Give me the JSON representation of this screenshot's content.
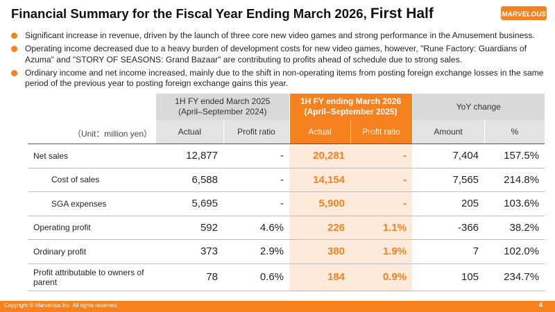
{
  "title": {
    "main": "Financial Summary for the Fiscal Year Ending March 2026,",
    "suffix": "First Half"
  },
  "logo": {
    "text": "MARVELOUS"
  },
  "bullets": [
    "Significant increase in revenue, driven by the launch of three core new video games and strong performance in the Amusement business.",
    "Operating income decreased due to a heavy burden of development costs for new video games, however, \"Rune Factory: Guardians of Azuma\" and \"STORY OF SEASONS: Grand Bazaar\" are contributing to profits ahead of schedule due to strong sales.",
    "Ordinary income and net income increased, mainly due to the shift in non-operating items from posting foreign exchange losses in the same period of the previous year to posting foreign exchange gains this year."
  ],
  "table": {
    "unit": "（Unit：million yen）",
    "group_headers": {
      "prev": [
        "1H FY ended March 2025",
        "(April–September 2024)"
      ],
      "curr": [
        "1H FY ending March 2026",
        "(April–September 2025)"
      ],
      "yoy": "YoY change"
    },
    "sub_headers": [
      "Actual",
      "Profit ratio",
      "Actual",
      "Profit ratio",
      "Amount",
      "%"
    ],
    "rows": [
      {
        "label": "Net sales",
        "prev_actual": "12,877",
        "prev_ratio": "-",
        "curr_actual": "20,281",
        "curr_ratio": "-",
        "amount": "7,404",
        "pct": "157.5%"
      },
      {
        "label": "Cost of sales",
        "prev_actual": "6,588",
        "prev_ratio": "-",
        "curr_actual": "14,154",
        "curr_ratio": "-",
        "amount": "7,565",
        "pct": "214.8%"
      },
      {
        "label": "SGA expenses",
        "prev_actual": "5,695",
        "prev_ratio": "-",
        "curr_actual": "5,900",
        "curr_ratio": "-",
        "amount": "205",
        "pct": "103.6%"
      },
      {
        "label": "Operating profit",
        "prev_actual": "592",
        "prev_ratio": "4.6%",
        "curr_actual": "226",
        "curr_ratio": "1.1%",
        "amount": "-366",
        "pct": "38.2%"
      },
      {
        "label": "Ordinary profit",
        "prev_actual": "373",
        "prev_ratio": "2.9%",
        "curr_actual": "380",
        "curr_ratio": "1.9%",
        "amount": "7",
        "pct": "102.0%"
      },
      {
        "label": "Profit attributable to owners of parent",
        "prev_actual": "78",
        "prev_ratio": "0.6%",
        "curr_actual": "184",
        "curr_ratio": "0.9%",
        "amount": "105",
        "pct": "234.7%"
      }
    ]
  },
  "footer": {
    "copyright": "Copyright © Marvelous Inc. All rights reserved.",
    "page": "4"
  },
  "colors": {
    "accent": "#f5821f",
    "highlight_bg": "#fdeada",
    "header_gray": "#d9d9d9"
  }
}
